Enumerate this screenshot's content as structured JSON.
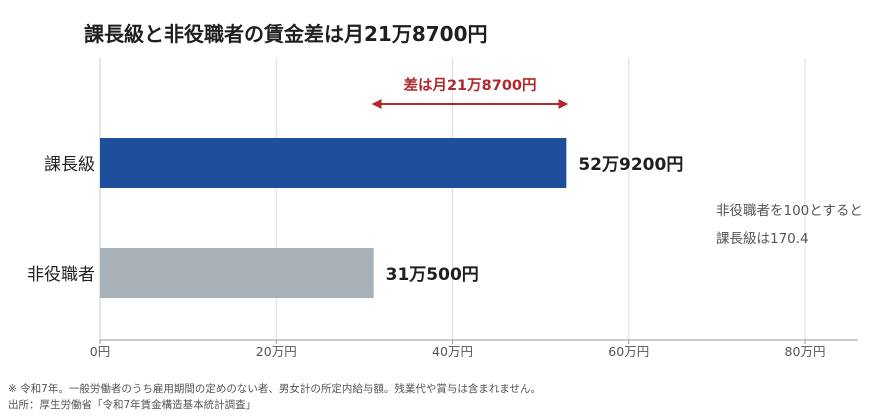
{
  "title": "課長級と非役職者の賃金差は月21万8700円",
  "chart_data": {
    "type": "bar",
    "orientation": "horizontal",
    "categories": [
      "課長級",
      "非役職者"
    ],
    "values": [
      529200,
      310500
    ],
    "value_labels": [
      "52万9200円",
      "31万500円"
    ],
    "bar_colors": [
      "#1f4e9a",
      "#a9b1b8"
    ],
    "xlim": [
      0,
      800000
    ],
    "x_ticks": [
      0,
      200000,
      400000,
      600000,
      800000
    ],
    "x_tick_labels": [
      "0円",
      "20万円",
      "40万円",
      "60万円",
      "80万円"
    ],
    "grid": "vertical",
    "annotation": {
      "text": "差は月21万8700円",
      "from": 310500,
      "to": 529200,
      "color": "#b0282c"
    }
  },
  "side_note": {
    "line1": "非役職者を100とすると",
    "line2": "課長級は170.4"
  },
  "footnotes": {
    "note": "※ 令和7年。一般労働者のうち雇用期間の定めのない者、男女計の所定内給与額。残業代や賞与は含まれません。",
    "source": "出所：厚生労働省「令和7年賃金構造基本統計調査」"
  }
}
